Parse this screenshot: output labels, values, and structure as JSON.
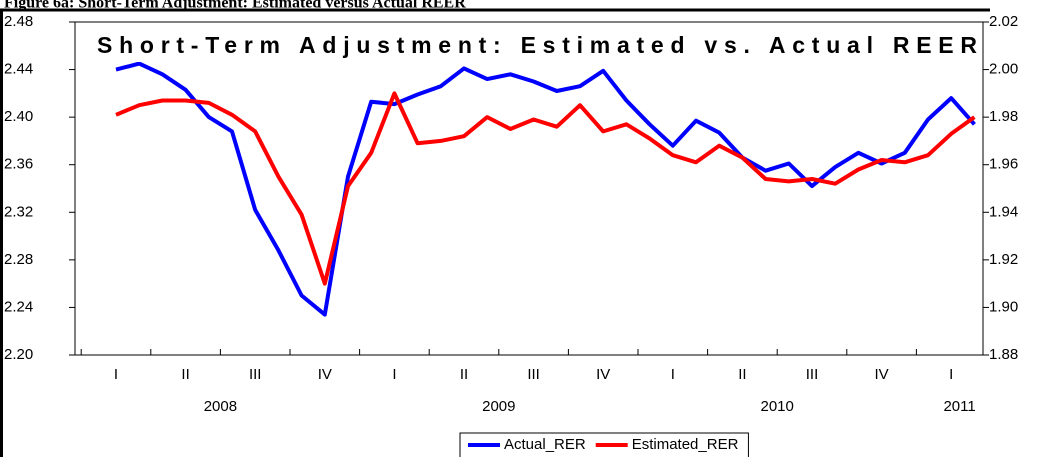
{
  "caption": "Figure 6a: Short-Term Adjustment: Estimated versus Actual REER",
  "chart_data": {
    "type": "line",
    "title": "Short-Term Adjustment: Estimated vs. Actual REER",
    "categories": [
      "I",
      null,
      null,
      "II",
      null,
      null,
      "III",
      null,
      null,
      "IV",
      null,
      null,
      "I",
      null,
      null,
      "II",
      null,
      null,
      "III",
      null,
      null,
      "IV",
      null,
      null,
      "I",
      null,
      null,
      "II",
      null,
      null,
      "III",
      null,
      null,
      "IV",
      null,
      null,
      "I",
      null
    ],
    "years": [
      "2008",
      "2009",
      "2010",
      "2011"
    ],
    "series": [
      {
        "name": "Actual_RER",
        "color": "#0000ff",
        "values": [
          2.44,
          2.445,
          2.436,
          2.423,
          2.4,
          2.388,
          2.322,
          2.288,
          2.25,
          2.234,
          2.35,
          2.413,
          2.411,
          2.419,
          2.426,
          2.441,
          2.432,
          2.436,
          2.43,
          2.422,
          2.426,
          2.439,
          2.414,
          2.394,
          2.376,
          2.397,
          2.387,
          2.366,
          2.355,
          2.361,
          2.342,
          2.358,
          2.37,
          2.361,
          2.37,
          2.398,
          2.416,
          2.394
        ]
      },
      {
        "name": "Estimated_RER",
        "color": "#ff0000",
        "axis": "y2",
        "values": [
          1.981,
          1.985,
          1.987,
          1.987,
          1.986,
          1.981,
          1.974,
          1.955,
          1.939,
          1.91,
          1.951,
          1.965,
          1.99,
          1.969,
          1.97,
          1.972,
          1.98,
          1.975,
          1.979,
          1.976,
          1.985,
          1.974,
          1.977,
          1.971,
          1.964,
          1.961,
          1.968,
          1.963,
          1.954,
          1.953,
          1.954,
          1.952,
          1.958,
          1.962,
          1.961,
          1.964,
          1.973,
          1.98
        ]
      }
    ],
    "ylim": [
      2.2,
      2.48
    ],
    "yticks": [
      {
        "value": 2.2,
        "label": "2.20"
      },
      2.24,
      2.28,
      2.32,
      2.36,
      {
        "value": 2.4,
        "label": "2.40"
      },
      2.44,
      2.48
    ],
    "y2lim": [
      1.88,
      2.02
    ],
    "y2ticks": [
      1.88,
      {
        "value": 1.9,
        "label": "1.90"
      },
      1.92,
      1.94,
      1.96,
      1.98,
      {
        "value": 2.0,
        "label": "2.00"
      },
      2.02
    ],
    "grid": false,
    "legend": "bottom"
  }
}
